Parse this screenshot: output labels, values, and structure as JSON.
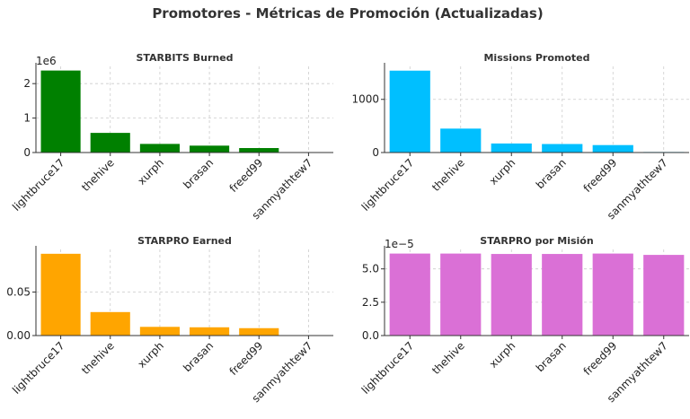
{
  "figure_title": "Promotores - Métricas de Promoción (Actualizadas)",
  "chart_data": [
    {
      "type": "bar",
      "title": "STARBITS Burned",
      "categories": [
        "lightbruce17",
        "thehive",
        "xurph",
        "brasan",
        "freed99",
        "sanmyathtew7"
      ],
      "values": [
        2380000,
        570000,
        250000,
        200000,
        130000,
        5000
      ],
      "color": "#008000",
      "ylim": [
        0,
        2500000
      ],
      "yticks": [
        0,
        1000000,
        2000000
      ],
      "ytick_labels": [
        "0",
        "1",
        "2"
      ],
      "offset_label": "1e6",
      "grid": true
    },
    {
      "type": "bar",
      "title": "Missions Promoted",
      "categories": [
        "lightbruce17",
        "thehive",
        "xurph",
        "brasan",
        "freed99",
        "sanmyathtew7"
      ],
      "values": [
        1540,
        450,
        170,
        160,
        140,
        10
      ],
      "color": "#00BFFF",
      "ylim": [
        0,
        1620
      ],
      "yticks": [
        0,
        1000
      ],
      "ytick_labels": [
        "0",
        "1000"
      ],
      "offset_label": "",
      "grid": true
    },
    {
      "type": "bar",
      "title": "STARPRO Earned",
      "categories": [
        "lightbruce17",
        "thehive",
        "xurph",
        "brasan",
        "freed99",
        "sanmyathtew7"
      ],
      "values": [
        0.094,
        0.027,
        0.01,
        0.0095,
        0.0085,
        0.0005
      ],
      "color": "#FFA500",
      "ylim": [
        0,
        0.099
      ],
      "yticks": [
        0,
        0.05
      ],
      "ytick_labels": [
        "0.00",
        "0.05"
      ],
      "offset_label": "",
      "grid": true
    },
    {
      "type": "bar",
      "title": "STARPRO por Misión",
      "categories": [
        "lightbruce17",
        "thehive",
        "xurph",
        "brasan",
        "freed99",
        "sanmyathtew7"
      ],
      "values": [
        6.15e-05,
        6.15e-05,
        6.12e-05,
        6.12e-05,
        6.15e-05,
        6.05e-05
      ],
      "color": "#DA70D6",
      "ylim": [
        0,
        6.46e-05
      ],
      "yticks": [
        0,
        2.5e-05,
        5e-05
      ],
      "ytick_labels": [
        "0.0",
        "2.5",
        "5.0"
      ],
      "offset_label": "1e−5",
      "grid": true
    }
  ]
}
